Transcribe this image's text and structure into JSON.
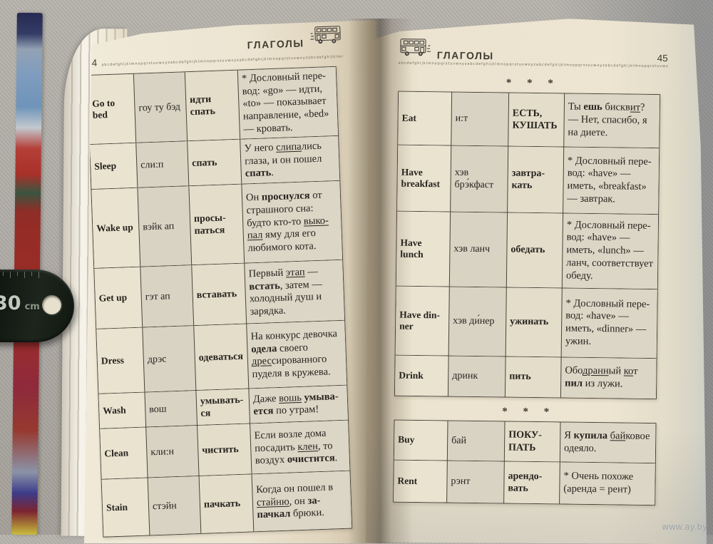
{
  "colors": {
    "paper": "#ece4d0",
    "table_border": "#49433a",
    "text": "#26231e",
    "fabric_background": "#b0aca6",
    "ruler_body": "#141a12",
    "watermark": "#9aa0a2"
  },
  "watermark": "www.ay.by",
  "ruler": {
    "number": "30",
    "unit": "cm"
  },
  "left_page": {
    "page_number": "44",
    "header_title": "ГЛАГОЛЫ",
    "alphabet_strip": "abcdefghijklmnopqrstuvwxyzabcdefghijklmnopqrstuvwxyzabcdefghijklmnopqrstuvwxyzabcdefghijklmnopqrstuvwxyz",
    "table": {
      "rows": [
        {
          "en": "Go to bed",
          "tr": "гоу ту бэд",
          "ru": "идти спать",
          "ex": [
            [
              "* Дословный пе­ре­вод: «go» — идти, «to» — показывает направление, «bed» — кровать.",
              ""
            ]
          ]
        },
        {
          "en": "Sleep",
          "tr": "сли:п",
          "ru": "спать",
          "ex": [
            [
              "У него ",
              ""
            ],
            [
              "слипа",
              "u"
            ],
            [
              "лись глаза, и он пошел ",
              ""
            ],
            [
              "спать",
              "b"
            ],
            [
              ".",
              ""
            ]
          ]
        },
        {
          "en": "Wake up",
          "tr": "вэйк ап",
          "ru": "просы­паться",
          "ex": [
            [
              "Он ",
              ""
            ],
            [
              "проснулся",
              "b"
            ],
            [
              " от страшного сна: будто кто-то ",
              ""
            ],
            [
              "выко­пал",
              "u"
            ],
            [
              " яму для его любимого кота.",
              ""
            ]
          ]
        },
        {
          "en": "Get up",
          "tr": "гэт ап",
          "ru": "вставать",
          "ex": [
            [
              "Первый ",
              ""
            ],
            [
              "этап",
              "u"
            ],
            [
              " — ",
              ""
            ],
            [
              "встать",
              "b"
            ],
            [
              ", затем — холодный душ и зарядка.",
              ""
            ]
          ]
        },
        {
          "en": "Dress",
          "tr": "дрэс",
          "ru": "одеваться",
          "ex": [
            [
              "На конкурс девоч­ка ",
              ""
            ],
            [
              "одела",
              "b"
            ],
            [
              " своего ",
              ""
            ],
            [
              "дрес",
              "u"
            ],
            [
              "сированного пуделя в кружева.",
              ""
            ]
          ]
        },
        {
          "en": "Wash",
          "tr": "вош",
          "ru": "умывать­ся",
          "ex": [
            [
              "Даже ",
              ""
            ],
            [
              "вошь",
              "u"
            ],
            [
              " ",
              ""
            ],
            [
              "умыва­ется",
              "b"
            ],
            [
              " по утрам!",
              ""
            ]
          ]
        },
        {
          "en": "Clean",
          "tr": "кли:н",
          "ru": "чистить",
          "ex": [
            [
              "Если возле дома посадить ",
              ""
            ],
            [
              "клен",
              "u"
            ],
            [
              ", то воздух ",
              ""
            ],
            [
              "очистится",
              "b"
            ],
            [
              ".",
              ""
            ]
          ]
        },
        {
          "en": "Stain",
          "tr": "стэйн",
          "ru": "пачкать",
          "ex": [
            [
              "Когда он пошел в ",
              ""
            ],
            [
              "стайню",
              "u"
            ],
            [
              ", он ",
              ""
            ],
            [
              "за­пачкал",
              "b"
            ],
            [
              " брюки.",
              ""
            ]
          ]
        }
      ]
    }
  },
  "right_page": {
    "page_number": "45",
    "header_title": "ГЛАГОЛЫ",
    "alphabet_strip": "abcdefghijklmnopqrstuvwxyzabcdefghijklmnopqrstuvwxyzabcdefghijklmnopqrstuvwxyzabcdefghijklmnopqrstuvwxyz",
    "separator_top": "* * *",
    "separator_mid": "* * *",
    "table1": {
      "rows": [
        {
          "en": "Eat",
          "tr": "и:т",
          "ru": "ЕСТЬ, КУШАТЬ",
          "ex": [
            [
              "Ты ",
              ""
            ],
            [
              "ешь",
              "b"
            ],
            [
              " бискв",
              ""
            ],
            [
              "ит",
              "u"
            ],
            [
              "? — Нет, спасибо, я на диете.",
              ""
            ]
          ]
        },
        {
          "en": "Have breakfast",
          "tr": "хэв брэ́кфаст",
          "ru": "завтра­кать",
          "ex": [
            [
              "* Дословный пе­ре­вод: «have» — иметь, «break­fast» — завтрак.",
              ""
            ]
          ]
        },
        {
          "en": "Have lunch",
          "tr": "хэв ланч",
          "ru": "обедать",
          "ex": [
            [
              "* Дословный пе­ре­вод: «have» — иметь, «lunch» — ланч, соответствует обеду.",
              ""
            ]
          ]
        },
        {
          "en": "Have din­ner",
          "tr": "хэв ди́нер",
          "ru": "ужинать",
          "ex": [
            [
              "* Дословный пе­ре­вод: «have» — иметь, «dinner» — ужин.",
              ""
            ]
          ]
        },
        {
          "en": "Drink",
          "tr": "дринк",
          "ru": "пить",
          "ex": [
            [
              "Обо",
              ""
            ],
            [
              "дранн",
              "u"
            ],
            [
              "ый ",
              ""
            ],
            [
              "ко",
              "u"
            ],
            [
              "т ",
              ""
            ],
            [
              "пил",
              "b"
            ],
            [
              " из лужи.",
              ""
            ]
          ]
        }
      ]
    },
    "table2": {
      "rows": [
        {
          "en": "Buy",
          "tr": "бай",
          "ru": "ПОКУ­ПАТЬ",
          "ex": [
            [
              "Я ",
              ""
            ],
            [
              "купила",
              "b"
            ],
            [
              " ",
              ""
            ],
            [
              "бай",
              "u"
            ],
            [
              "ковое одеяло.",
              ""
            ]
          ]
        },
        {
          "en": "Rent",
          "tr": "рэнт",
          "ru": "арендо­вать",
          "ex": [
            [
              "* Очень похоже (аренда = рент)",
              ""
            ]
          ]
        }
      ]
    }
  }
}
